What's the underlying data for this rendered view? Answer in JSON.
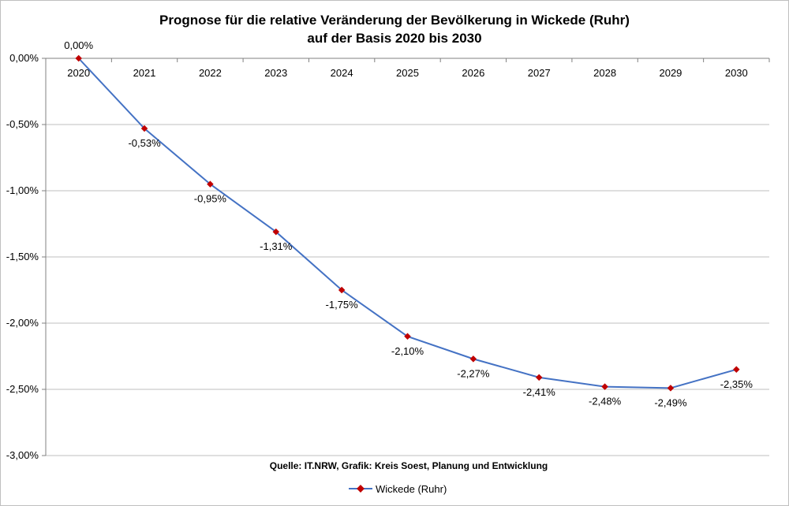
{
  "chart_data": {
    "type": "line",
    "title_lines": [
      "Prognose für die relative Veränderung der Bevölkerung in Wickede (Ruhr)",
      "auf der Basis 2020 bis 2030"
    ],
    "x": [
      "2020",
      "2021",
      "2022",
      "2023",
      "2024",
      "2025",
      "2026",
      "2027",
      "2028",
      "2029",
      "2030"
    ],
    "series": [
      {
        "name": "Wickede (Ruhr)",
        "values": [
          0.0,
          -0.53,
          -0.95,
          -1.31,
          -1.75,
          -2.1,
          -2.27,
          -2.41,
          -2.48,
          -2.49,
          -2.35
        ],
        "labels": [
          "0,00%",
          "-0,53%",
          "-0,95%",
          "-1,31%",
          "-1,75%",
          "-2,10%",
          "-2,27%",
          "-2,41%",
          "-2,48%",
          "-2,49%",
          "-2,35%"
        ]
      }
    ],
    "y_ticks": [
      0,
      -0.5,
      -1.0,
      -1.5,
      -2.0,
      -2.5,
      -3.0
    ],
    "y_tick_labels": [
      "0,00%",
      "-0,50%",
      "-1,00%",
      "-1,50%",
      "-2,00%",
      "-2,50%",
      "-3,00%"
    ],
    "ylim": [
      -3.0,
      0.0
    ],
    "grid": true,
    "legend_position": "bottom",
    "source_text": "Quelle: IT.NRW, Grafik: Kreis Soest, Planung und Entwicklung",
    "colors": {
      "line": "#4472c4",
      "marker": "#c00000",
      "grid": "#bfbfbf",
      "axis": "#808080"
    }
  }
}
